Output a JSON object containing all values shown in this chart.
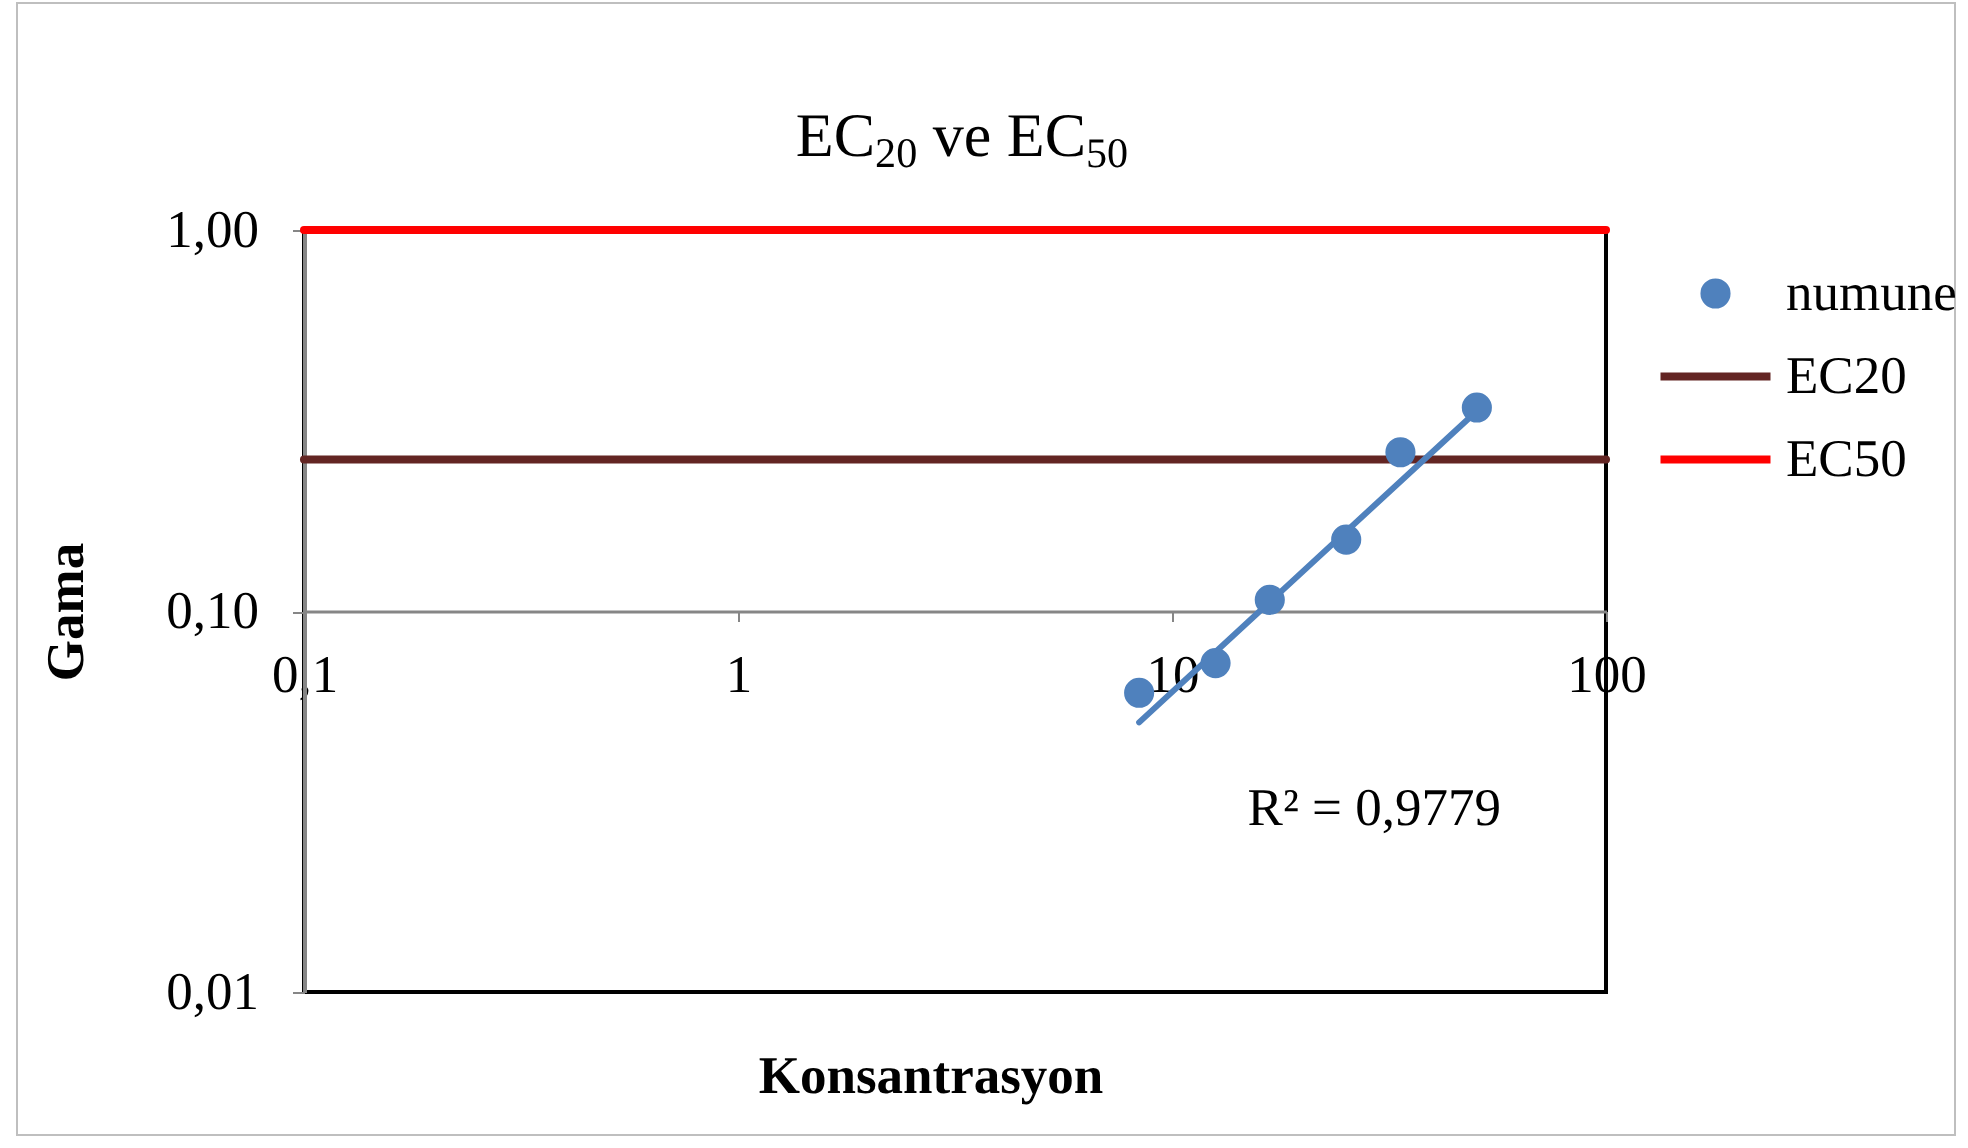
{
  "chart_data": {
    "type": "scatter",
    "title": "EC$_{20}$ ve EC$_{50}$",
    "xlabel": "Konsantrasyon",
    "ylabel": "Gama",
    "annotations": [
      "R² = 0,9779"
    ],
    "series": [
      {
        "name": "numune",
        "color": "#4f81bd",
        "marker": "circle",
        "x": [
          8.4,
          12.6,
          16.8,
          25.2,
          33.6,
          50.4
        ],
        "values": [
          0.061,
          0.073,
          0.107,
          0.154,
          0.261,
          0.342
        ]
      },
      {
        "name": "EC20",
        "type": "line",
        "color": "#632523",
        "x": [
          0.1,
          100
        ],
        "values": [
          0.25,
          0.25
        ]
      },
      {
        "name": "EC50",
        "type": "line",
        "color": "#ff0000",
        "x": [
          0.1,
          100
        ],
        "values": [
          1,
          1
        ]
      },
      {
        "type": "line",
        "color": "#4f81bd",
        "x": [
          8.4,
          50.4
        ],
        "values": [
          0.051,
          0.335
        ]
      }
    ],
    "xlim": [
      0.1,
      100
    ],
    "ylim": [
      0.01,
      1
    ],
    "xticks": [
      {
        "value": 0.1,
        "label": "0,1"
      },
      1,
      10,
      100
    ],
    "yticks": [
      {
        "value": 0.01,
        "label": "0,01"
      },
      {
        "value": 0.1,
        "label": "0,10"
      },
      {
        "value": 1,
        "label": "1,00"
      }
    ],
    "log": "xy",
    "legend": "right"
  }
}
